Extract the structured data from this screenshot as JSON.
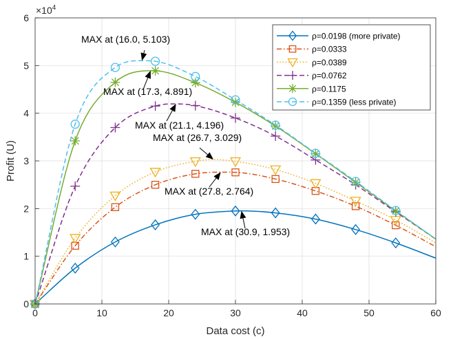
{
  "chart_data": {
    "type": "line",
    "xlabel": "Data cost (c)",
    "ylabel": "Profit (U)",
    "y_exponent_label": "×10",
    "y_exponent_power": "4",
    "xlim": [
      0,
      60
    ],
    "ylim": [
      0,
      6
    ],
    "x_ticks": [
      "0",
      "10",
      "20",
      "30",
      "40",
      "50",
      "60"
    ],
    "y_ticks": [
      "0",
      "1",
      "2",
      "3",
      "4",
      "5",
      "6"
    ],
    "grid": true,
    "legend_position": "top-right",
    "marker_x": [
      0,
      6,
      12,
      18,
      24,
      30,
      36,
      42,
      48,
      54
    ],
    "series": [
      {
        "name": "ρ=0.0198 (more private)",
        "color": "#0072BD",
        "line_style": "solid",
        "marker": "diamond",
        "peak_x": 30.9,
        "peak_y": 1.953,
        "end_y": 0.96,
        "values": [
          0,
          0.75,
          1.3,
          1.66,
          1.88,
          1.95,
          1.91,
          1.78,
          1.56,
          1.28
        ]
      },
      {
        "name": "ρ=0.0333",
        "color": "#D95319",
        "line_style": "dashdot",
        "marker": "square",
        "peak_x": 27.8,
        "peak_y": 2.764,
        "end_y": 1.2,
        "values": [
          0,
          1.22,
          2.03,
          2.5,
          2.73,
          2.76,
          2.62,
          2.37,
          2.05,
          1.65
        ]
      },
      {
        "name": "ρ=0.0389",
        "color": "#EDB120",
        "line_style": "dotted",
        "marker": "triangle-down",
        "peak_x": 26.7,
        "peak_y": 3.029,
        "end_y": 1.28,
        "values": [
          0,
          1.38,
          2.27,
          2.77,
          2.99,
          2.99,
          2.82,
          2.53,
          2.16,
          1.76
        ]
      },
      {
        "name": "ρ=0.0762",
        "color": "#7E2F8E",
        "line_style": "dashed",
        "marker": "plus",
        "peak_x": 21.1,
        "peak_y": 4.196,
        "end_y": 1.36,
        "values": [
          0,
          2.47,
          3.7,
          4.15,
          4.16,
          3.9,
          3.52,
          3.02,
          2.5,
          1.93
        ]
      },
      {
        "name": "ρ=0.1175",
        "color": "#77AC30",
        "line_style": "solid",
        "marker": "asterisk",
        "peak_x": 17.3,
        "peak_y": 4.891,
        "end_y": 1.36,
        "values": [
          0,
          3.42,
          4.65,
          4.89,
          4.64,
          4.23,
          3.73,
          3.15,
          2.55,
          1.95
        ]
      },
      {
        "name": "ρ=0.1359 (less private)",
        "color": "#4DBEEE",
        "line_style": "dashed",
        "marker": "circle",
        "peak_x": 16.0,
        "peak_y": 5.103,
        "end_y": 1.36,
        "values": [
          0,
          3.77,
          4.96,
          5.09,
          4.77,
          4.28,
          3.75,
          3.16,
          2.57,
          1.96
        ]
      }
    ],
    "annotations": [
      {
        "text": "MAX at (16.0, 5.103)",
        "x": 16.0,
        "y": 5.103
      },
      {
        "text": "MAX at (17.3, 4.891)",
        "x": 17.3,
        "y": 4.891
      },
      {
        "text": "MAX at (21.1, 4.196)",
        "x": 21.1,
        "y": 4.196
      },
      {
        "text": "MAX at (26.7, 3.029)",
        "x": 26.7,
        "y": 3.029
      },
      {
        "text": "MAX at (27.8, 2.764)",
        "x": 27.8,
        "y": 2.764
      },
      {
        "text": "MAX at (30.9, 1.953)",
        "x": 30.9,
        "y": 1.953
      }
    ]
  }
}
